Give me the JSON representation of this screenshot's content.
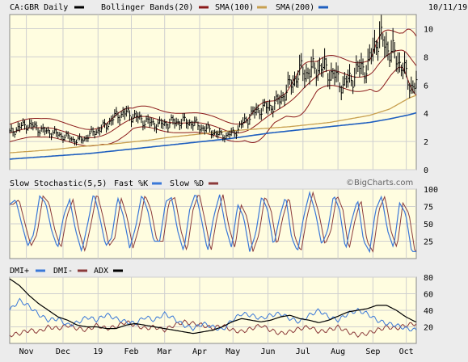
{
  "header": {
    "ticker_label": "CA:GBR Daily",
    "bollinger_label": "Bollinger Bands(20)",
    "sma100_label": "SMA(100)",
    "sma200_label": "SMA(200)",
    "date": "10/11/19"
  },
  "stoch_legend": {
    "title": "Slow Stochastic(5,5)",
    "fast_label": "Fast %K",
    "slow_label": "Slow %D"
  },
  "dmi_legend": {
    "plus_label": "DMI+",
    "minus_label": "DMI-",
    "adx_label": "ADX"
  },
  "watermark": "©BigCharts.com",
  "colors": {
    "price": "#000000",
    "bollinger": "#8b1a1a",
    "sma100": "#c8a050",
    "sma200": "#1f5fbf",
    "fast_k": "#3a78d8",
    "slow_d": "#8b3a3a",
    "dmi_plus": "#3a78d8",
    "dmi_minus": "#8b3a3a",
    "adx": "#000000",
    "panel_bg": "#fffde0",
    "grid": "#cfcfcf"
  },
  "chart_data": {
    "type": "line",
    "months": [
      "Nov",
      "Dec",
      "19",
      "Feb",
      "Mar",
      "Apr",
      "May",
      "Jun",
      "Jul",
      "Aug",
      "Sep",
      "Oct"
    ],
    "month_index": [
      10,
      32,
      53,
      73,
      93,
      114,
      134,
      155,
      176,
      197,
      218,
      238
    ],
    "n_days": 245,
    "price_panel": {
      "ylim": [
        0,
        11
      ],
      "yticks": [
        0,
        2,
        4,
        6,
        8,
        10
      ],
      "close": [
        2.6,
        2.95,
        3.2,
        3.05,
        2.75,
        2.65,
        2.45,
        2.3,
        2.05,
        2.2,
        2.65,
        2.9,
        3.4,
        3.9,
        4.0,
        3.75,
        3.5,
        3.3,
        3.2,
        3.3,
        3.4,
        3.4,
        3.3,
        3.0,
        2.8,
        2.5,
        2.4,
        2.65,
        3.3,
        3.9,
        4.3,
        4.4,
        4.7,
        5.4,
        6.3,
        7.0,
        6.9,
        7.3,
        7.1,
        6.6,
        6.0,
        6.5,
        7.2,
        7.3,
        9.3,
        9.0,
        8.2,
        7.5,
        6.0
      ],
      "close_step_days": 5,
      "sma100": [
        1.2,
        1.3,
        1.4,
        1.55,
        1.7,
        1.8,
        1.95,
        2.1,
        2.3,
        2.45,
        2.6,
        2.75,
        2.85,
        2.95,
        3.05,
        3.2,
        3.35,
        3.6,
        3.85,
        4.3,
        5.1,
        5.6
      ],
      "sma100_step_days": 12,
      "sma200": [
        0.75,
        0.85,
        0.95,
        1.05,
        1.15,
        1.3,
        1.45,
        1.6,
        1.75,
        1.9,
        2.05,
        2.2,
        2.4,
        2.6,
        2.75,
        2.9,
        3.05,
        3.2,
        3.35,
        3.6,
        3.9,
        4.3
      ],
      "sma200_step_days": 12
    },
    "stochastic_panel": {
      "ylim": [
        0,
        100
      ],
      "yticks": [
        25,
        50,
        75,
        100
      ],
      "fast_k": [
        78,
        85,
        50,
        18,
        35,
        90,
        80,
        40,
        15,
        62,
        85,
        40,
        10,
        50,
        95,
        60,
        18,
        30,
        88,
        60,
        15,
        45,
        92,
        70,
        25,
        25,
        82,
        88,
        40,
        10,
        70,
        95,
        55,
        10,
        60,
        92,
        45,
        15,
        78,
        60,
        10,
        35,
        90,
        70,
        18,
        60,
        90,
        30,
        10,
        60,
        95,
        65,
        20,
        40,
        92,
        70,
        12,
        55,
        85,
        25,
        10,
        70,
        90,
        40,
        15,
        80,
        65,
        10
      ],
      "fast_k_step_days": 3.6,
      "slow_d_lag_points": 1
    },
    "dmi_panel": {
      "ylim": [
        0,
        80
      ],
      "yticks": [
        20,
        40,
        60,
        80
      ],
      "adx": [
        78,
        70,
        58,
        48,
        40,
        32,
        28,
        22,
        20,
        20,
        18,
        18,
        22,
        24,
        22,
        20,
        18,
        16,
        14,
        12,
        14,
        16,
        20,
        26,
        30,
        28,
        26,
        28,
        32,
        34,
        30,
        28,
        25,
        28,
        33,
        38,
        40,
        42,
        46,
        46,
        40,
        32,
        26
      ],
      "adx_step_days": 5.8,
      "dmi_plus": [
        40,
        52,
        45,
        35,
        28,
        30,
        22,
        25,
        32,
        28,
        35,
        30,
        26,
        24,
        32,
        28,
        36,
        30,
        22,
        18,
        24,
        20,
        16,
        28,
        36,
        34,
        30,
        34,
        36,
        30,
        26,
        34,
        40,
        32,
        28,
        36,
        40,
        36,
        28,
        24,
        22,
        18,
        16
      ],
      "dmi_plus_step_days": 5.8,
      "dmi_minus": [
        10,
        12,
        16,
        14,
        20,
        18,
        22,
        18,
        16,
        22,
        18,
        20,
        26,
        22,
        18,
        20,
        16,
        22,
        26,
        24,
        22,
        18,
        22,
        16,
        14,
        18,
        22,
        16,
        12,
        14,
        18,
        20,
        14,
        16,
        20,
        14,
        10,
        12,
        16,
        20,
        18,
        22,
        24
      ],
      "dmi_minus_step_days": 5.8
    }
  }
}
